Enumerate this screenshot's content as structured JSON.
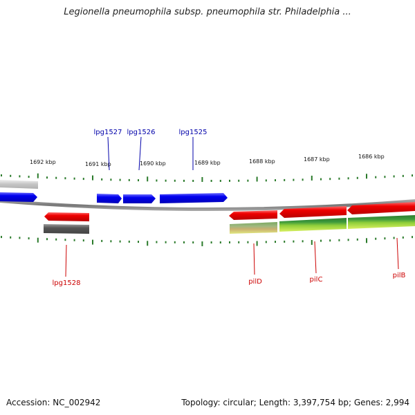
{
  "title": "Legionella pneumophila subsp. pneumophila str. Philadelphia ...",
  "footer": {
    "accession": "Accession: NC_002942",
    "summary": "Topology: circular; Length: 3,397,754 bp; Genes: 2,994"
  },
  "colors": {
    "forward_gene": "#0000ee",
    "reverse_gene": "#ee0000",
    "label_forward": "#0000aa",
    "label_reverse": "#cc0000",
    "tick": "#2a7a2a",
    "backbone": "#888888",
    "gray_feature": "#666666",
    "light_gray_feature": "#c8c8c8"
  },
  "ruler": {
    "kbp_labels": [
      "1692 kbp",
      "1691 kbp",
      "1690 kbp",
      "1689 kbp",
      "1688 kbp",
      "1687 kbp",
      "1686 kbp"
    ]
  },
  "gene_labels": {
    "forward": [
      "lpg1527",
      "lpg1526",
      "lpg1525"
    ],
    "reverse": [
      "lpg1528",
      "pilD",
      "pilC",
      "pilB"
    ]
  }
}
